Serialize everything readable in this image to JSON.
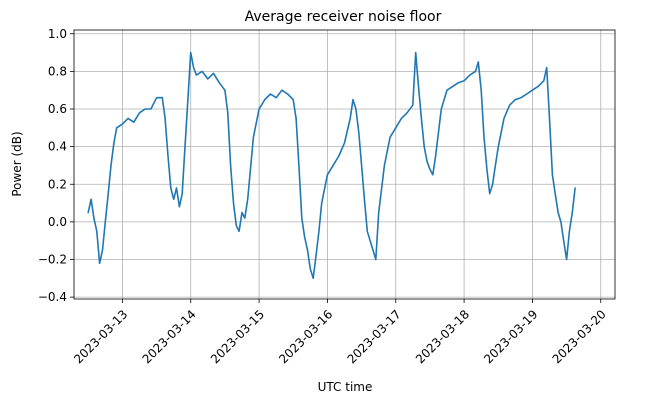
{
  "chart_data": {
    "type": "line",
    "title": "Average receiver noise floor",
    "xlabel": "UTC time",
    "ylabel": "Power (dB)",
    "xlim": [
      "2023-03-12T07:00:00Z",
      "2023-03-20T05:00:00Z"
    ],
    "ylim": [
      -0.41,
      1.02
    ],
    "x_ticks": [
      "2023-03-13",
      "2023-03-14",
      "2023-03-15",
      "2023-03-16",
      "2023-03-17",
      "2023-03-18",
      "2023-03-19",
      "2023-03-20"
    ],
    "y_ticks": [
      -0.4,
      -0.2,
      0.0,
      0.2,
      0.4,
      0.6,
      0.8,
      1.0
    ],
    "y_tick_labels": [
      "−0.4",
      "−0.2",
      "0.0",
      "0.2",
      "0.4",
      "0.6",
      "0.8",
      "1.0"
    ],
    "grid": true,
    "series": [
      {
        "color": "#1f77b4",
        "points": [
          [
            "2023-03-12T12:00:00Z",
            0.05
          ],
          [
            "2023-03-12T13:00:00Z",
            0.12
          ],
          [
            "2023-03-12T14:00:00Z",
            0.02
          ],
          [
            "2023-03-12T15:00:00Z",
            -0.05
          ],
          [
            "2023-03-12T16:00:00Z",
            -0.22
          ],
          [
            "2023-03-12T17:00:00Z",
            -0.15
          ],
          [
            "2023-03-12T18:00:00Z",
            0.0
          ],
          [
            "2023-03-12T19:00:00Z",
            0.15
          ],
          [
            "2023-03-12T20:00:00Z",
            0.3
          ],
          [
            "2023-03-12T21:00:00Z",
            0.42
          ],
          [
            "2023-03-12T22:00:00Z",
            0.5
          ],
          [
            "2023-03-13T00:00:00Z",
            0.52
          ],
          [
            "2023-03-13T02:00:00Z",
            0.55
          ],
          [
            "2023-03-13T04:00:00Z",
            0.53
          ],
          [
            "2023-03-13T06:00:00Z",
            0.58
          ],
          [
            "2023-03-13T08:00:00Z",
            0.6
          ],
          [
            "2023-03-13T10:00:00Z",
            0.6
          ],
          [
            "2023-03-13T12:00:00Z",
            0.66
          ],
          [
            "2023-03-13T14:00:00Z",
            0.66
          ],
          [
            "2023-03-13T15:00:00Z",
            0.55
          ],
          [
            "2023-03-13T16:00:00Z",
            0.35
          ],
          [
            "2023-03-13T17:00:00Z",
            0.18
          ],
          [
            "2023-03-13T18:00:00Z",
            0.12
          ],
          [
            "2023-03-13T19:00:00Z",
            0.18
          ],
          [
            "2023-03-13T20:00:00Z",
            0.08
          ],
          [
            "2023-03-13T21:00:00Z",
            0.15
          ],
          [
            "2023-03-13T22:00:00Z",
            0.4
          ],
          [
            "2023-03-13T23:00:00Z",
            0.65
          ],
          [
            "2023-03-14T00:00:00Z",
            0.9
          ],
          [
            "2023-03-14T01:00:00Z",
            0.82
          ],
          [
            "2023-03-14T02:00:00Z",
            0.78
          ],
          [
            "2023-03-14T04:00:00Z",
            0.8
          ],
          [
            "2023-03-14T06:00:00Z",
            0.76
          ],
          [
            "2023-03-14T08:00:00Z",
            0.79
          ],
          [
            "2023-03-14T10:00:00Z",
            0.74
          ],
          [
            "2023-03-14T12:00:00Z",
            0.7
          ],
          [
            "2023-03-14T13:00:00Z",
            0.58
          ],
          [
            "2023-03-14T14:00:00Z",
            0.3
          ],
          [
            "2023-03-14T15:00:00Z",
            0.1
          ],
          [
            "2023-03-14T16:00:00Z",
            -0.02
          ],
          [
            "2023-03-14T17:00:00Z",
            -0.05
          ],
          [
            "2023-03-14T18:00:00Z",
            0.05
          ],
          [
            "2023-03-14T19:00:00Z",
            0.02
          ],
          [
            "2023-03-14T20:00:00Z",
            0.12
          ],
          [
            "2023-03-14T22:00:00Z",
            0.45
          ],
          [
            "2023-03-15T00:00:00Z",
            0.6
          ],
          [
            "2023-03-15T02:00:00Z",
            0.65
          ],
          [
            "2023-03-15T04:00:00Z",
            0.68
          ],
          [
            "2023-03-15T06:00:00Z",
            0.66
          ],
          [
            "2023-03-15T08:00:00Z",
            0.7
          ],
          [
            "2023-03-15T10:00:00Z",
            0.68
          ],
          [
            "2023-03-15T12:00:00Z",
            0.65
          ],
          [
            "2023-03-15T13:00:00Z",
            0.55
          ],
          [
            "2023-03-15T14:00:00Z",
            0.3
          ],
          [
            "2023-03-15T15:00:00Z",
            0.02
          ],
          [
            "2023-03-15T16:00:00Z",
            -0.08
          ],
          [
            "2023-03-15T17:00:00Z",
            -0.15
          ],
          [
            "2023-03-15T18:00:00Z",
            -0.25
          ],
          [
            "2023-03-15T19:00:00Z",
            -0.3
          ],
          [
            "2023-03-15T20:00:00Z",
            -0.18
          ],
          [
            "2023-03-15T21:00:00Z",
            -0.05
          ],
          [
            "2023-03-15T22:00:00Z",
            0.1
          ],
          [
            "2023-03-16T00:00:00Z",
            0.25
          ],
          [
            "2023-03-16T02:00:00Z",
            0.3
          ],
          [
            "2023-03-16T04:00:00Z",
            0.35
          ],
          [
            "2023-03-16T06:00:00Z",
            0.42
          ],
          [
            "2023-03-16T08:00:00Z",
            0.55
          ],
          [
            "2023-03-16T09:00:00Z",
            0.65
          ],
          [
            "2023-03-16T10:00:00Z",
            0.6
          ],
          [
            "2023-03-16T11:00:00Z",
            0.48
          ],
          [
            "2023-03-16T12:00:00Z",
            0.3
          ],
          [
            "2023-03-16T13:00:00Z",
            0.12
          ],
          [
            "2023-03-16T14:00:00Z",
            -0.05
          ],
          [
            "2023-03-16T15:00:00Z",
            -0.1
          ],
          [
            "2023-03-16T16:00:00Z",
            -0.15
          ],
          [
            "2023-03-16T17:00:00Z",
            -0.2
          ],
          [
            "2023-03-16T18:00:00Z",
            0.05
          ],
          [
            "2023-03-16T20:00:00Z",
            0.3
          ],
          [
            "2023-03-16T22:00:00Z",
            0.45
          ],
          [
            "2023-03-17T00:00:00Z",
            0.5
          ],
          [
            "2023-03-17T02:00:00Z",
            0.55
          ],
          [
            "2023-03-17T04:00:00Z",
            0.58
          ],
          [
            "2023-03-17T06:00:00Z",
            0.62
          ],
          [
            "2023-03-17T07:00:00Z",
            0.9
          ],
          [
            "2023-03-17T08:00:00Z",
            0.72
          ],
          [
            "2023-03-17T09:00:00Z",
            0.55
          ],
          [
            "2023-03-17T10:00:00Z",
            0.4
          ],
          [
            "2023-03-17T11:00:00Z",
            0.32
          ],
          [
            "2023-03-17T12:00:00Z",
            0.28
          ],
          [
            "2023-03-17T13:00:00Z",
            0.25
          ],
          [
            "2023-03-17T14:00:00Z",
            0.35
          ],
          [
            "2023-03-17T16:00:00Z",
            0.6
          ],
          [
            "2023-03-17T18:00:00Z",
            0.7
          ],
          [
            "2023-03-17T20:00:00Z",
            0.72
          ],
          [
            "2023-03-17T22:00:00Z",
            0.74
          ],
          [
            "2023-03-18T00:00:00Z",
            0.75
          ],
          [
            "2023-03-18T02:00:00Z",
            0.78
          ],
          [
            "2023-03-18T04:00:00Z",
            0.8
          ],
          [
            "2023-03-18T05:00:00Z",
            0.85
          ],
          [
            "2023-03-18T06:00:00Z",
            0.7
          ],
          [
            "2023-03-18T07:00:00Z",
            0.45
          ],
          [
            "2023-03-18T08:00:00Z",
            0.28
          ],
          [
            "2023-03-18T09:00:00Z",
            0.15
          ],
          [
            "2023-03-18T10:00:00Z",
            0.2
          ],
          [
            "2023-03-18T11:00:00Z",
            0.3
          ],
          [
            "2023-03-18T12:00:00Z",
            0.4
          ],
          [
            "2023-03-18T14:00:00Z",
            0.55
          ],
          [
            "2023-03-18T16:00:00Z",
            0.62
          ],
          [
            "2023-03-18T18:00:00Z",
            0.65
          ],
          [
            "2023-03-18T20:00:00Z",
            0.66
          ],
          [
            "2023-03-18T22:00:00Z",
            0.68
          ],
          [
            "2023-03-19T00:00:00Z",
            0.7
          ],
          [
            "2023-03-19T02:00:00Z",
            0.72
          ],
          [
            "2023-03-19T04:00:00Z",
            0.75
          ],
          [
            "2023-03-19T05:00:00Z",
            0.82
          ],
          [
            "2023-03-19T06:00:00Z",
            0.55
          ],
          [
            "2023-03-19T07:00:00Z",
            0.25
          ],
          [
            "2023-03-19T08:00:00Z",
            0.15
          ],
          [
            "2023-03-19T09:00:00Z",
            0.05
          ],
          [
            "2023-03-19T10:00:00Z",
            0.0
          ],
          [
            "2023-03-19T11:00:00Z",
            -0.1
          ],
          [
            "2023-03-19T12:00:00Z",
            -0.2
          ],
          [
            "2023-03-19T13:00:00Z",
            -0.05
          ],
          [
            "2023-03-19T14:00:00Z",
            0.05
          ],
          [
            "2023-03-19T15:00:00Z",
            0.18
          ]
        ]
      }
    ]
  }
}
